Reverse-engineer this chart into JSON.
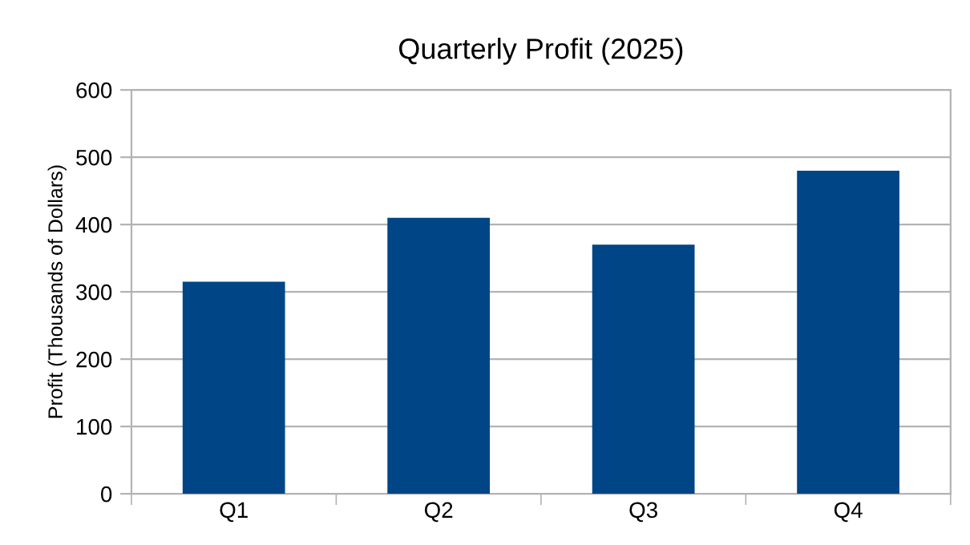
{
  "chart_data": {
    "type": "bar",
    "title": "Quarterly Profit (2025)",
    "ylabel": "Profit (Thousands of Dollars)",
    "categories": [
      "Q1",
      "Q2",
      "Q3",
      "Q4"
    ],
    "values": [
      315,
      410,
      370,
      480
    ],
    "color": "#004586",
    "ylim": [
      0,
      600
    ],
    "yticks": [
      0,
      100,
      200,
      300,
      400,
      500,
      600
    ],
    "grid": "y",
    "legend": false
  }
}
